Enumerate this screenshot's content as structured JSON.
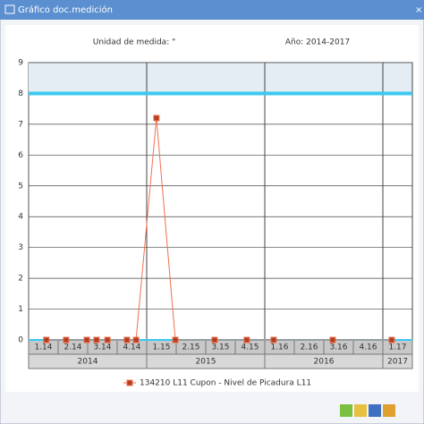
{
  "window_title": "Gráfico doc.medición",
  "chart_data": {
    "type": "line",
    "header_left": "Unidad de medida: \"",
    "header_right": "Año: 2014-2017",
    "categories": [
      "1.14",
      "2.14",
      "3.14",
      "4.14",
      "1.15",
      "2.15",
      "3.15",
      "4.15",
      "1.16",
      "2.16",
      "3.16",
      "4.16",
      "1.17"
    ],
    "groups": [
      {
        "label": "2014",
        "span": 4
      },
      {
        "label": "2015",
        "span": 4
      },
      {
        "label": "2016",
        "span": 4
      },
      {
        "label": "2017",
        "span": 1
      }
    ],
    "xlim": [
      0,
      13
    ],
    "x": [
      0.6,
      1.27,
      1.97,
      2.3,
      2.67,
      3.33,
      3.64,
      4.33,
      4.97,
      6.3,
      7.39,
      8.3,
      10.3,
      12.3
    ],
    "series": [
      {
        "name": "134210 L11 Cupon - Nivel de Picadura L11",
        "color": "#f07050",
        "values": [
          0,
          0,
          0,
          0,
          0,
          0,
          0,
          7.2,
          0,
          0,
          0,
          0,
          0,
          0
        ]
      }
    ],
    "threshold": 8,
    "threshold_color": "#3cc8f0",
    "ylim": [
      0,
      9
    ],
    "yticks": [
      0,
      1,
      2,
      3,
      4,
      5,
      6,
      7,
      8,
      9
    ],
    "grid": true
  }
}
